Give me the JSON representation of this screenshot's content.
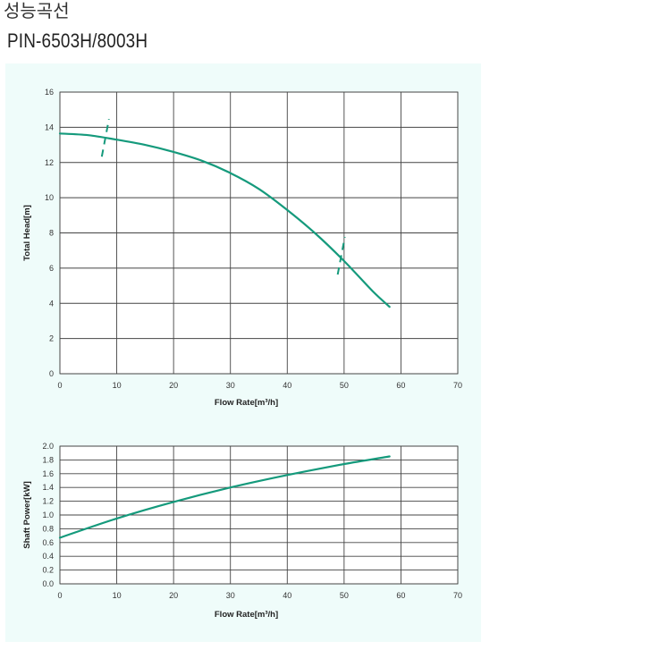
{
  "header": {
    "title": "성능곡선",
    "model": "PIN-6503H/8003H"
  },
  "colors": {
    "curve": "#159a7c",
    "panel_background": "#effcfa",
    "grid": "#444444"
  },
  "chart_data": [
    {
      "type": "line",
      "xlabel": "Flow Rate[m³/h]",
      "ylabel": "Total Head[m]",
      "xlim": [
        0,
        70
      ],
      "ylim": [
        0,
        16
      ],
      "xticks": [
        0,
        10,
        20,
        30,
        40,
        50,
        60,
        70
      ],
      "yticks": [
        0,
        2,
        4,
        6,
        8,
        10,
        12,
        14,
        16
      ],
      "ytick_labels": [
        "0",
        "2",
        "4",
        "6",
        "8",
        "10",
        "12",
        "14",
        "16"
      ],
      "grid": true,
      "series": [
        {
          "x": [
            0,
            5,
            10,
            15,
            20,
            25,
            30,
            35,
            40,
            45,
            50,
            55,
            58
          ],
          "y": [
            13.65,
            13.55,
            13.3,
            13.0,
            12.6,
            12.1,
            11.4,
            10.5,
            9.3,
            7.95,
            6.4,
            4.7,
            3.8
          ]
        }
      ],
      "markers": [
        {
          "x": 8,
          "y": 13.4
        },
        {
          "x": 49.5,
          "y": 6.7
        }
      ]
    },
    {
      "type": "line",
      "xlabel": "Flow Rate[m³/h]",
      "ylabel": "Shaft Power[kW]",
      "xlim": [
        0,
        70
      ],
      "ylim": [
        0,
        2.0
      ],
      "xticks": [
        0,
        10,
        20,
        30,
        40,
        50,
        60,
        70
      ],
      "yticks": [
        0,
        0.2,
        0.4,
        0.6,
        0.8,
        1.0,
        1.2,
        1.4,
        1.6,
        1.8,
        2.0
      ],
      "ytick_labels": [
        "0.0",
        "0.2",
        "0.4",
        "0.6",
        "0.8",
        "1.0",
        "1.2",
        "1.4",
        "1.6",
        "1.8",
        "2.0"
      ],
      "grid": true,
      "series": [
        {
          "x": [
            0,
            10,
            20,
            30,
            40,
            50,
            58
          ],
          "y": [
            0.67,
            0.95,
            1.19,
            1.4,
            1.58,
            1.74,
            1.85
          ]
        }
      ]
    }
  ]
}
